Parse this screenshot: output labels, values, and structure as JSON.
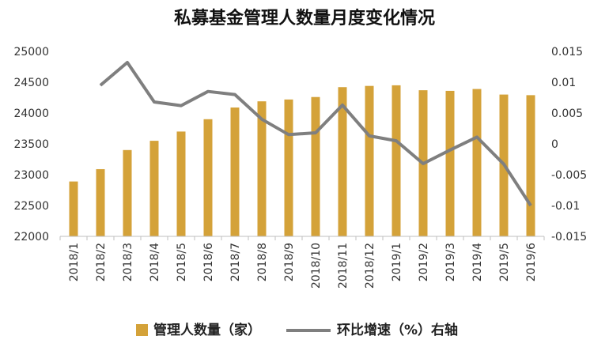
{
  "chart_data": {
    "type": "bar",
    "title": "私募基金管理人数量月度变化情况",
    "categories": [
      "2018/1",
      "2018/2",
      "2018/3",
      "2018/4",
      "2018/5",
      "2018/6",
      "2018/7",
      "2018/8",
      "2018/9",
      "2018/10",
      "2018/11",
      "2018/12",
      "2019/1",
      "2019/2",
      "2019/3",
      "2019/4",
      "2019/5",
      "2019/6"
    ],
    "series": [
      {
        "name": "管理人数量（家）",
        "type": "bar",
        "axis": "left",
        "values": [
          22890,
          23090,
          23400,
          23550,
          23700,
          23900,
          24090,
          24190,
          24220,
          24260,
          24420,
          24440,
          24450,
          24370,
          24360,
          24390,
          24300,
          24290
        ]
      },
      {
        "name": "环比增速（%）右轴",
        "type": "line",
        "axis": "right",
        "values": [
          null,
          0.0095,
          0.0132,
          0.0068,
          0.0062,
          0.0085,
          0.008,
          0.004,
          0.0015,
          0.0018,
          0.0063,
          0.0013,
          0.0005,
          -0.0032,
          -0.001,
          0.0011,
          -0.0033,
          -0.01
        ]
      }
    ],
    "y_left": {
      "ylim": [
        22000,
        25000
      ],
      "ticks": [
        "22000",
        "22500",
        "23000",
        "23500",
        "24000",
        "24500",
        "25000"
      ]
    },
    "y_right": {
      "ylim": [
        -0.015,
        0.015
      ],
      "ticks": [
        "-0.015",
        "-0.01",
        "-0.005",
        "0",
        "0.005",
        "0.01",
        "0.015"
      ]
    },
    "colors": {
      "bar": "#d4a239",
      "line": "#7f7f7f"
    },
    "grid": false,
    "legend": "bottom"
  }
}
